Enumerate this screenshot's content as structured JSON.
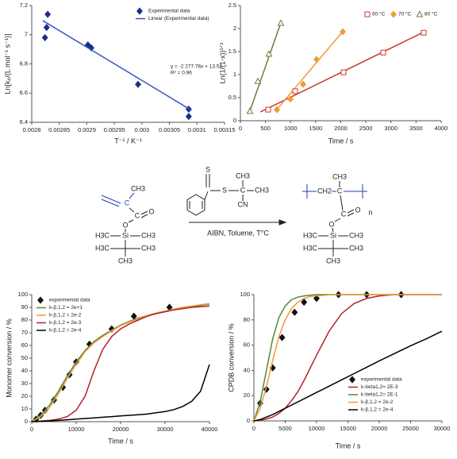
{
  "chart_data": [
    {
      "type": "scatter",
      "x_label": "T⁻¹ / K⁻¹",
      "y_label": "Ln[kₚ/(L mol⁻¹ s⁻¹)]",
      "xlim": [
        0.0028,
        0.00315
      ],
      "xticks": [
        0.0028,
        0.00285,
        0.0029,
        0.00295,
        0.003,
        0.00305,
        0.0031,
        0.00315
      ],
      "ylim": [
        6.4,
        7.2
      ],
      "yticks": [
        6.4,
        6.6,
        6.8,
        7,
        7.2
      ],
      "legend": "upper right",
      "annotations": [
        "y = -2 277.76x + 13.52",
        "R² = 0.96"
      ],
      "series": [
        {
          "name": "Experimental data",
          "color": "#1b2f86",
          "marker": "diamond",
          "filled": true,
          "x": [
            0.002824,
            0.002827,
            0.002829,
            0.002902,
            0.002908,
            0.002993,
            0.003085,
            0.003085
          ],
          "values": [
            6.98,
            7.05,
            7.14,
            6.93,
            6.91,
            6.66,
            6.49,
            6.44
          ]
        },
        {
          "name": "Linear (Experimental data)",
          "color": "#3a55c8",
          "x": [
            0.00282,
            0.00309
          ],
          "values": [
            7.097,
            6.482
          ]
        }
      ]
    },
    {
      "type": "scatter",
      "x_label": "Time / s",
      "y_label": "Ln(1/(1-x))¹ᐟ²",
      "xlim": [
        0,
        4000
      ],
      "xticks": [
        0,
        500,
        1000,
        1500,
        2000,
        2500,
        3000,
        3500,
        4000
      ],
      "ylim": [
        0,
        2.5
      ],
      "yticks": [
        0,
        0.5,
        1,
        1.5,
        2,
        2.5
      ],
      "legend": "top",
      "series": [
        {
          "name": "60 °C",
          "color": "#c8382c",
          "marker": "square",
          "filled": false,
          "x": [
            553,
            1091,
            2055,
            2846,
            3652
          ],
          "values": [
            0.24,
            0.64,
            1.05,
            1.48,
            1.91
          ]
        },
        {
          "name": "70 °C",
          "color": "#f29a38",
          "marker": "diamond",
          "filled": true,
          "x": [
            727,
            996,
            1249,
            1518,
            2040
          ],
          "values": [
            0.24,
            0.47,
            0.79,
            1.33,
            1.93
          ]
        },
        {
          "name": "80 °C",
          "color": "#6b7d3a",
          "marker": "triangle",
          "filled": false,
          "x": [
            190,
            348,
            569,
            806
          ],
          "values": [
            0.21,
            0.86,
            1.45,
            2.12
          ]
        }
      ],
      "fit_lines": [
        {
          "color": "#c8382c",
          "x": [
            400,
            3700
          ],
          "values": [
            0.19,
            1.95
          ]
        },
        {
          "color": "#f29a38",
          "x": [
            700,
            2050
          ],
          "values": [
            0.21,
            1.95
          ]
        },
        {
          "color": "#6b7d3a",
          "x": [
            180,
            820
          ],
          "values": [
            0.18,
            2.17
          ]
        }
      ]
    },
    {
      "type": "line",
      "x_label": "Time / s",
      "y_label": "Monomer conversion / %",
      "xlim": [
        0,
        40000
      ],
      "xticks": [
        0,
        10000,
        20000,
        30000,
        40000
      ],
      "ylim": [
        0,
        100
      ],
      "yticks": [
        0,
        10,
        20,
        30,
        40,
        50,
        60,
        70,
        80,
        90,
        100
      ],
      "legend": "upper left",
      "x": [
        0,
        2000,
        4000,
        6000,
        8000,
        10000,
        12000,
        14000,
        16000,
        18000,
        20000,
        22000,
        24000,
        26000,
        28000,
        30000,
        32000,
        34000,
        36000,
        38000,
        40000
      ],
      "series": [
        {
          "name": "experimental data",
          "color": "#111111",
          "marker": "diamond",
          "filled": true,
          "x": [
            1000,
            2000,
            3000,
            5000,
            7000,
            8500,
            10000,
            13000,
            18000,
            23000,
            31000
          ],
          "values": [
            2,
            5,
            9,
            17,
            27,
            37,
            47,
            61,
            73,
            83,
            90
          ]
        },
        {
          "name": "k-β,1,2 = 2e+1",
          "color": "#4f8a3a",
          "values": [
            0,
            5,
            13,
            24,
            36,
            47,
            56,
            63,
            68,
            72,
            76,
            79,
            81.5,
            83.5,
            85.5,
            87,
            88.5,
            89.5,
            90.5,
            91.5,
            92.5
          ]
        },
        {
          "name": "k-β,1,2 = 2e-2",
          "color": "#f29a38",
          "values": [
            0,
            4,
            11,
            22,
            34,
            45,
            55,
            62,
            67,
            71.5,
            75.5,
            78.5,
            81,
            83.5,
            85.5,
            87,
            88.5,
            90,
            91,
            92,
            93
          ]
        },
        {
          "name": "k-β,1,2 = 2e-3",
          "color": "#b5202a",
          "values": [
            0,
            0.5,
            1,
            2,
            4,
            9,
            20,
            40,
            57,
            67,
            73,
            77,
            80,
            83,
            85,
            86.5,
            88,
            89,
            90,
            90.5,
            91
          ]
        },
        {
          "name": "k-β,1,2 = 2e-4",
          "color": "#000000",
          "values": [
            0,
            0.3,
            0.6,
            1,
            1.5,
            2,
            2.5,
            3,
            3.5,
            4,
            4.5,
            5,
            5.5,
            6,
            7,
            8,
            9.5,
            12,
            16,
            24,
            45
          ]
        }
      ]
    },
    {
      "type": "line",
      "x_label": "Time / s",
      "y_label": "CPDB conversion / %",
      "xlim": [
        0,
        30000
      ],
      "xticks": [
        0,
        5000,
        10000,
        15000,
        20000,
        25000,
        30000
      ],
      "ylim": [
        0,
        100
      ],
      "yticks": [
        0,
        20,
        40,
        60,
        80,
        100
      ],
      "legend": "lower right",
      "x": [
        0,
        1000,
        2000,
        3000,
        4000,
        5000,
        6000,
        7000,
        8000,
        9000,
        10000,
        12000,
        14000,
        16000,
        18000,
        20000,
        22500,
        25000,
        27500,
        30000
      ],
      "series": [
        {
          "name": "experimental data",
          "color": "#111111",
          "marker": "diamond",
          "filled": true,
          "x": [
            1000,
            2000,
            3000,
            4500,
            6500,
            8000,
            10000,
            13500,
            18000,
            23500
          ],
          "values": [
            14,
            25,
            42,
            66,
            86,
            94,
            97,
            100,
            100,
            100
          ]
        },
        {
          "name": "k-beta1,2= 2E-3",
          "color": "#b5202a",
          "values": [
            0,
            0.5,
            1.5,
            3,
            6,
            10,
            16,
            23,
            32,
            42,
            52,
            71,
            85,
            93,
            97,
            99,
            100,
            100,
            100,
            100
          ]
        },
        {
          "name": "k-beta1,2= 2E-1",
          "color": "#4f8a3a",
          "values": [
            0,
            15,
            40,
            65,
            82,
            91,
            96,
            98,
            99,
            99.5,
            100,
            100,
            100,
            100,
            100,
            100,
            100,
            100,
            100,
            100
          ]
        },
        {
          "name": "k-β,1,2 = 2e-2",
          "color": "#f29a38",
          "values": [
            0,
            10,
            27,
            48,
            67,
            80,
            89,
            94,
            97,
            98.5,
            99,
            99.8,
            100,
            100,
            100,
            100,
            100,
            100,
            100,
            100
          ]
        },
        {
          "name": "k-β,1,2 = 2e-4",
          "color": "#000000",
          "values": [
            0,
            1,
            3,
            5,
            7.5,
            10,
            12.5,
            15,
            17.5,
            20,
            22.5,
            27.5,
            32.5,
            37.5,
            42.5,
            47.5,
            53.5,
            59.5,
            65,
            71
          ]
        }
      ]
    }
  ],
  "scheme": {
    "monomer": [
      "C",
      "CH3",
      "C",
      "O",
      "O",
      "H3C",
      "Si",
      "CH3",
      "H3C",
      "CH3",
      "CH3"
    ],
    "cta": [
      "S",
      "S",
      "C",
      "CH3",
      "CH3",
      "CN"
    ],
    "conditions": "AIBN, Toluene, T°C",
    "polymer": [
      "CH2",
      "C",
      "CH3",
      "C",
      "O",
      "O",
      "H3C",
      "Si",
      "CH3",
      "H3C",
      "CH3",
      "CH3",
      "n"
    ]
  }
}
